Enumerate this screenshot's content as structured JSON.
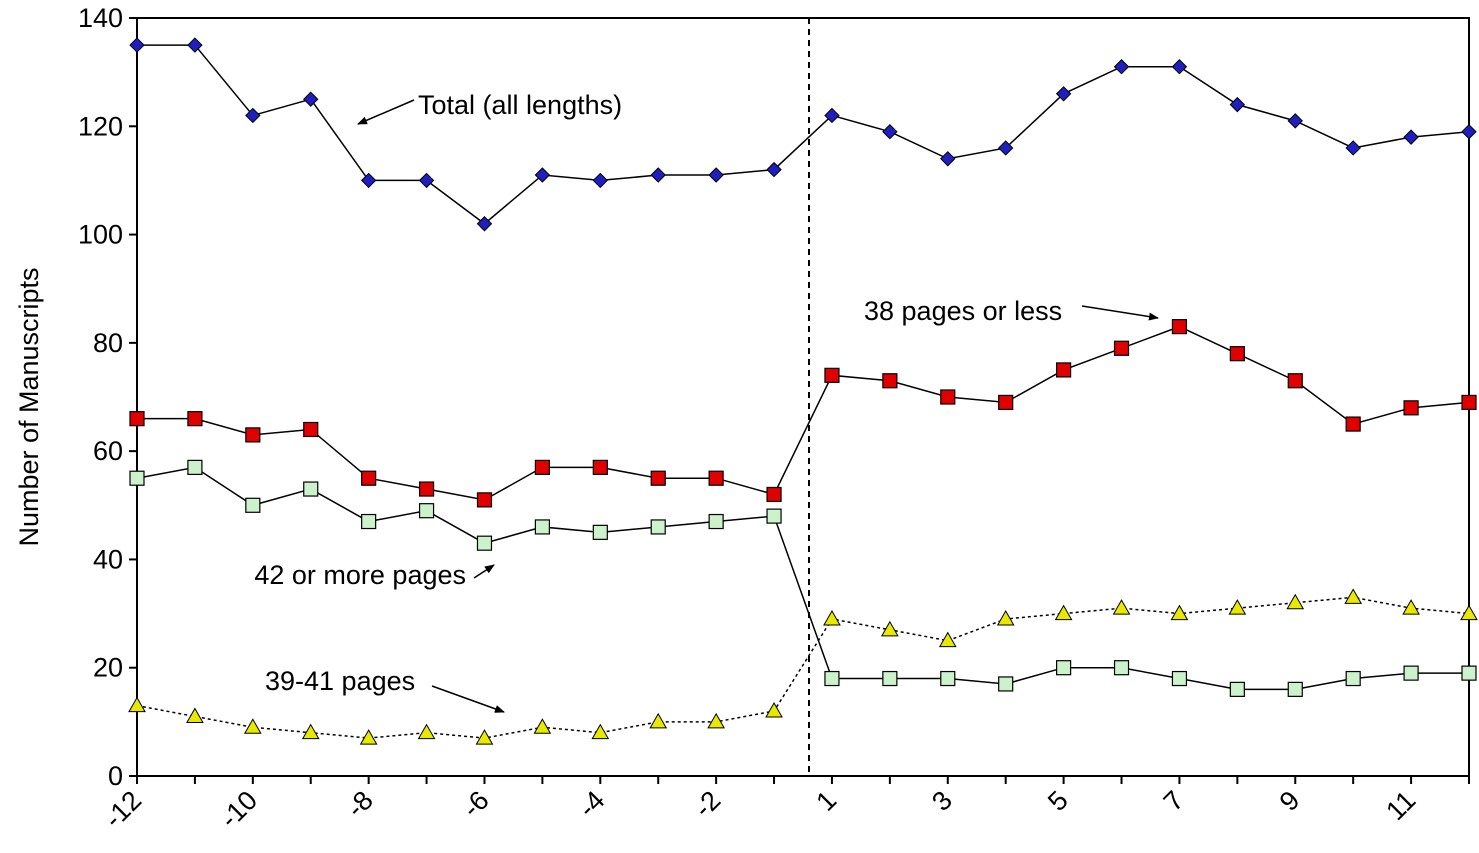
{
  "chart_data": {
    "type": "line",
    "ylabel": "Number of Manuscripts",
    "xlabel": "",
    "ylim": [
      0,
      140
    ],
    "yticks": [
      "0",
      "20",
      "40",
      "60",
      "80",
      "100",
      "120",
      "140"
    ],
    "xtick_labels": [
      "-12",
      "-10",
      "-8",
      "-6",
      "-4",
      "-2",
      "1",
      "3",
      "5",
      "7",
      "9",
      "11"
    ],
    "x": [
      -12,
      -11,
      -10,
      -9,
      -8,
      -7,
      -6,
      -5,
      -4,
      -3,
      -2,
      -1,
      1,
      2,
      3,
      4,
      5,
      6,
      7,
      8,
      9,
      10,
      11,
      12
    ],
    "series": [
      {
        "name": "Total (all lengths)",
        "marker": "diamond",
        "color": "#1f1fbf",
        "line_style": "solid",
        "values": [
          135,
          135,
          122,
          125,
          110,
          110,
          102,
          111,
          110,
          111,
          111,
          112,
          122,
          119,
          114,
          116,
          126,
          131,
          131,
          124,
          121,
          116,
          118,
          119
        ]
      },
      {
        "name": "38 pages or less",
        "marker": "square",
        "color": "#e00000",
        "line_style": "solid",
        "values": [
          66,
          66,
          63,
          64,
          55,
          53,
          51,
          57,
          57,
          55,
          55,
          52,
          74,
          73,
          70,
          69,
          75,
          79,
          83,
          78,
          73,
          65,
          68,
          69
        ]
      },
      {
        "name": "42 or more pages",
        "marker": "square-open",
        "color": "#ccf2cc",
        "line_style": "solid",
        "values": [
          55,
          57,
          50,
          53,
          47,
          49,
          43,
          46,
          45,
          46,
          47,
          48,
          18,
          18,
          18,
          17,
          20,
          20,
          18,
          16,
          16,
          18,
          19,
          19
        ]
      },
      {
        "name": "39-41 pages",
        "marker": "triangle",
        "color": "#e8e800",
        "line_style": "dotted",
        "values": [
          13,
          11,
          9,
          8,
          7,
          8,
          7,
          9,
          8,
          10,
          10,
          12,
          29,
          27,
          25,
          29,
          30,
          31,
          30,
          31,
          32,
          33,
          31,
          30
        ]
      }
    ],
    "annotations": [
      {
        "text": "Total (all lengths)",
        "series": 0
      },
      {
        "text": "38 pages or less",
        "series": 1
      },
      {
        "text": "42 or more pages",
        "series": 2
      },
      {
        "text": "39-41 pages",
        "series": 3
      }
    ],
    "divider_between_x": [
      -1,
      1
    ],
    "grid": false
  }
}
